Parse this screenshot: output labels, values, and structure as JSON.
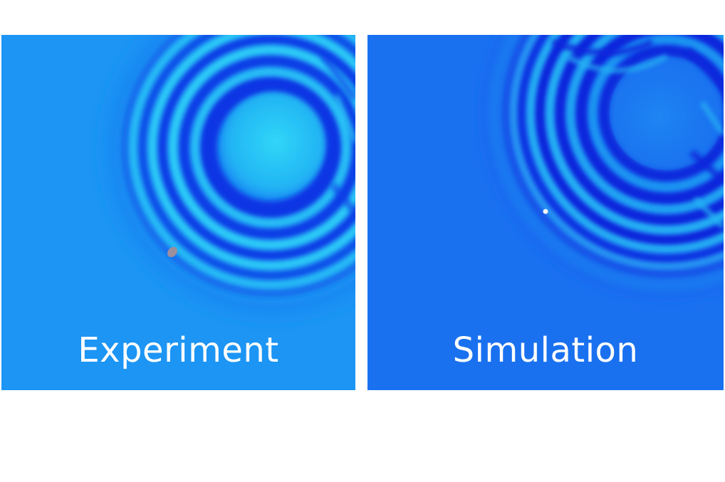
{
  "panels": [
    {
      "id": "experiment",
      "label": "Experiment",
      "background_color": "#1c95f4",
      "ring_dark_color": "#0d3de6",
      "ring_light_color": "#2fd0f7",
      "droplet_color": "#9c8f9d"
    },
    {
      "id": "simulation",
      "label": "Simulation",
      "background_color": "#1a71f0",
      "ring_dark_color": "#0b26dc",
      "ring_light_color": "#26b4f3",
      "droplet_color": "#f4f4f6"
    }
  ]
}
